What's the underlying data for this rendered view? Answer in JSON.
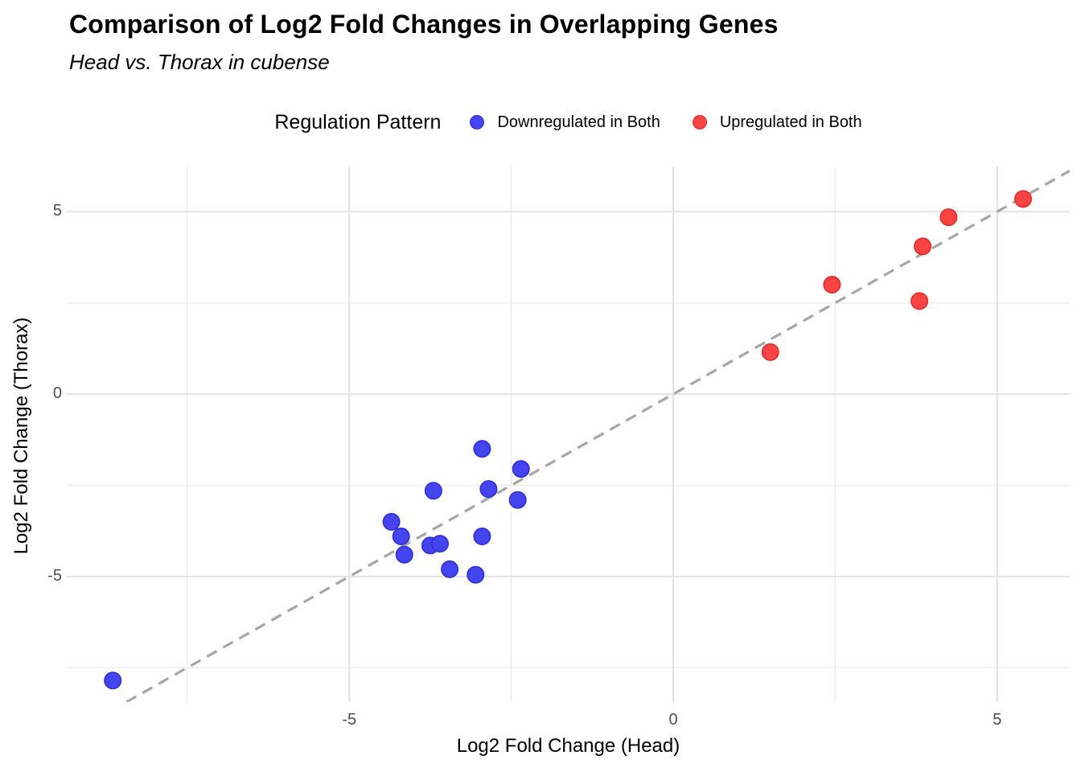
{
  "title": "Comparison of Log2 Fold Changes in Overlapping Genes",
  "subtitle": "Head vs. Thorax in cubense",
  "legend": {
    "title": "Regulation Pattern",
    "items": [
      {
        "label": "Downregulated in Both",
        "color": "#4545ef",
        "stroke": "#2e2dd8"
      },
      {
        "label": "Upregulated in Both",
        "color": "#fa4343",
        "stroke": "#e02b2b"
      }
    ]
  },
  "chart_data": {
    "type": "scatter",
    "title": "Comparison of Log2 Fold Changes in Overlapping Genes",
    "subtitle": "Head vs. Thorax in cubense",
    "xlabel": "Log2 Fold Change (Head)",
    "ylabel": "Log2 Fold Change (Thorax)",
    "x_domain": [
      -9.36,
      6.12
    ],
    "y_domain": [
      -8.44,
      6.24
    ],
    "x_ticks": [
      -5,
      0,
      5
    ],
    "y_ticks": [
      5,
      0,
      -5
    ],
    "x_tick_labels": [
      "-5",
      "0",
      "5"
    ],
    "y_tick_labels": [
      "5",
      "0",
      "-5"
    ],
    "grid_interval": 2.5,
    "grid_major_interval": 5,
    "grid_major_color": "#e3e3e3",
    "grid_minor_color": "#ededed",
    "reference_line": {
      "type": "identity y=x",
      "style": "dashed",
      "color": "#a6a6a6"
    },
    "series": [
      {
        "name": "Downregulated in Both",
        "color": "#4545ef",
        "stroke": "#2e2dd8",
        "points": [
          [
            -2.95,
            -1.5
          ],
          [
            -2.35,
            -2.05
          ],
          [
            -3.7,
            -2.65
          ],
          [
            -2.85,
            -2.6
          ],
          [
            -2.4,
            -2.9
          ],
          [
            -4.35,
            -3.5
          ],
          [
            -4.2,
            -3.9
          ],
          [
            -4.15,
            -4.4
          ],
          [
            -3.75,
            -4.15
          ],
          [
            -3.6,
            -4.1
          ],
          [
            -2.95,
            -3.9
          ],
          [
            -3.45,
            -4.8
          ],
          [
            -3.05,
            -4.95
          ],
          [
            -8.65,
            -7.85
          ]
        ]
      },
      {
        "name": "Upregulated in Both",
        "color": "#fa4343",
        "stroke": "#e02b2b",
        "points": [
          [
            5.4,
            5.35
          ],
          [
            4.25,
            4.85
          ],
          [
            3.85,
            4.05
          ],
          [
            2.45,
            3.0
          ],
          [
            3.8,
            2.55
          ],
          [
            1.5,
            1.15
          ]
        ]
      }
    ]
  }
}
